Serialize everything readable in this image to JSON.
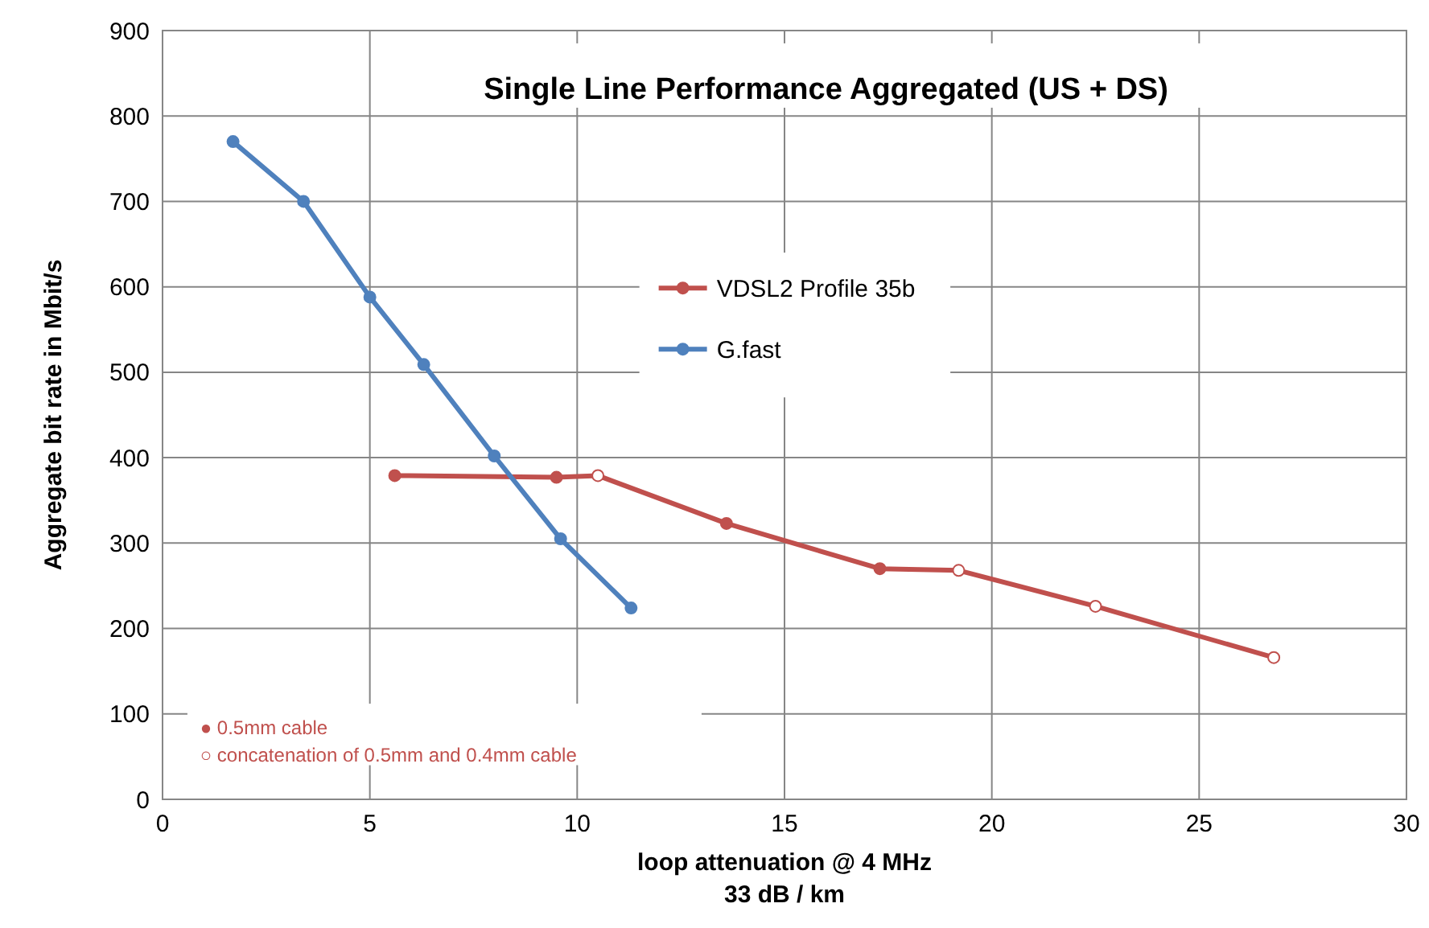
{
  "chart_data": {
    "type": "line",
    "title": "Single Line Performance Aggregated (US + DS)",
    "xlabel": "loop attenuation  @ 4 MHz\n33 dB / km",
    "ylabel": "Aggregate bit rate in Mbit/s",
    "xlim": [
      0,
      30
    ],
    "xticks": [
      0,
      5,
      10,
      15,
      20,
      25,
      30
    ],
    "ylim": [
      0,
      900
    ],
    "yticks": [
      0,
      100,
      200,
      300,
      400,
      500,
      600,
      700,
      800,
      900
    ],
    "grid": true,
    "legend": "top right",
    "marker": "circle",
    "line_style": "solid",
    "series": [
      {
        "name": "VDSL2 Profile 35b",
        "color": "#c0504d",
        "x": [
          5.6,
          9.5,
          10.5,
          13.6,
          17.3,
          19.2,
          22.5,
          26.8
        ],
        "values": [
          379,
          377,
          379,
          323,
          270,
          268,
          226,
          166
        ],
        "colors": [
          "#c0504d",
          "#c0504d",
          "#ffffff",
          "#c0504d",
          "#c0504d",
          "#ffffff",
          "#ffffff",
          "#ffffff"
        ]
      },
      {
        "name": "G.fast",
        "color": "#4f81bd",
        "x": [
          1.7,
          3.4,
          5.0,
          6.3,
          8.0,
          9.6,
          11.3
        ],
        "values": [
          770,
          700,
          588,
          509,
          402,
          305,
          224
        ]
      }
    ],
    "annotations": [
      "● 0.5mm cable",
      "○ concatenation of 0.5mm and 0.4mm cable"
    ]
  }
}
